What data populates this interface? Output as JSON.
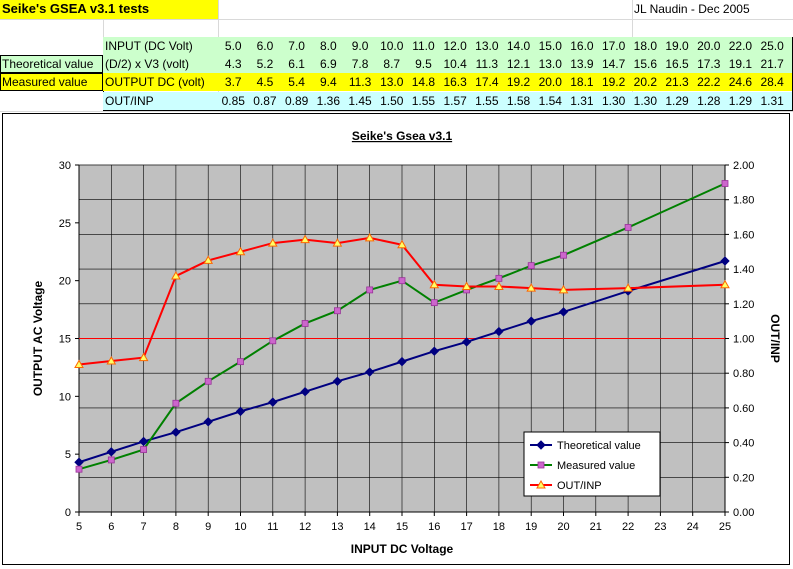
{
  "sheet": {
    "title": "Seike's GSEA v3.1 tests",
    "author": "JL Naudin - Dec 2005",
    "rows": [
      {
        "label": "",
        "head": "INPUT (DC Volt)",
        "values": [
          "5.0",
          "6.0",
          "7.0",
          "8.0",
          "9.0",
          "10.0",
          "11.0",
          "12.0",
          "13.0",
          "14.0",
          "15.0",
          "16.0",
          "17.0",
          "18.0",
          "19.0",
          "20.0",
          "22.0",
          "25.0"
        ],
        "bg": "#ccffcc",
        "labelbg": "#ffffff"
      },
      {
        "label": "Theoretical value",
        "head": "(D/2) x V3 (volt)",
        "values": [
          "4.3",
          "5.2",
          "6.1",
          "6.9",
          "7.8",
          "8.7",
          "9.5",
          "10.4",
          "11.3",
          "12.1",
          "13.0",
          "13.9",
          "14.7",
          "15.6",
          "16.5",
          "17.3",
          "19.1",
          "21.7"
        ],
        "bg": "#ccffcc",
        "labelbg": "#ccffcc"
      },
      {
        "label": "Measured value",
        "head": "OUTPUT DC (volt)",
        "values": [
          "3.7",
          "4.5",
          "5.4",
          "9.4",
          "11.3",
          "13.0",
          "14.8",
          "16.3",
          "17.4",
          "19.2",
          "20.0",
          "18.1",
          "19.2",
          "20.2",
          "21.3",
          "22.2",
          "24.6",
          "28.4"
        ],
        "bg": "#ffff00",
        "labelbg": "#ffff00"
      },
      {
        "label": "",
        "head": "OUT/INP",
        "values": [
          "0.85",
          "0.87",
          "0.89",
          "1.36",
          "1.45",
          "1.50",
          "1.55",
          "1.57",
          "1.55",
          "1.58",
          "1.54",
          "1.31",
          "1.30",
          "1.30",
          "1.29",
          "1.28",
          "1.29",
          "1.31"
        ],
        "bg": "#ccffff",
        "labelbg": "#ffffff"
      }
    ]
  },
  "chart_data": {
    "type": "line",
    "title": "Seike's Gsea v3.1",
    "xlabel": "INPUT DC Voltage",
    "ylabel": "OUTPUT AC Voltage",
    "y2label": "OUT/INP",
    "xlim": [
      5,
      25
    ],
    "ylim": [
      0,
      30
    ],
    "y2lim": [
      0,
      2
    ],
    "xticks": [
      "5",
      "6",
      "7",
      "8",
      "9",
      "10",
      "11",
      "12",
      "13",
      "14",
      "15",
      "16",
      "17",
      "18",
      "19",
      "20",
      "21",
      "22",
      "23",
      "24",
      "25"
    ],
    "yticks": [
      "0",
      "5",
      "10",
      "15",
      "20",
      "25",
      "30"
    ],
    "y2ticks": [
      "0.00",
      "0.20",
      "0.40",
      "0.60",
      "0.80",
      "1.00",
      "1.20",
      "1.40",
      "1.60",
      "1.80",
      "2.00"
    ],
    "grid": true,
    "x": [
      5,
      6,
      7,
      8,
      9,
      10,
      11,
      12,
      13,
      14,
      15,
      16,
      17,
      18,
      19,
      20,
      22,
      25
    ],
    "series": [
      {
        "name": "Theoretical value",
        "axis": "left",
        "color": "#000080",
        "marker": "diamond",
        "values": [
          4.3,
          5.2,
          6.1,
          6.9,
          7.8,
          8.7,
          9.5,
          10.4,
          11.3,
          12.1,
          13.0,
          13.9,
          14.7,
          15.6,
          16.5,
          17.3,
          19.1,
          21.7
        ]
      },
      {
        "name": "Measured value",
        "axis": "left",
        "color": "#008000",
        "marker": "square",
        "values": [
          3.7,
          4.5,
          5.4,
          9.4,
          11.3,
          13.0,
          14.8,
          16.3,
          17.4,
          19.2,
          20.0,
          18.1,
          19.2,
          20.2,
          21.3,
          22.2,
          24.6,
          28.4
        ]
      },
      {
        "name": "OUT/INP",
        "axis": "right",
        "color": "#ff0000",
        "marker": "triangle",
        "values": [
          0.85,
          0.87,
          0.89,
          1.36,
          1.45,
          1.5,
          1.55,
          1.57,
          1.55,
          1.58,
          1.54,
          1.31,
          1.3,
          1.3,
          1.29,
          1.28,
          1.29,
          1.31
        ]
      }
    ],
    "reference_line": {
      "axis": "right",
      "value": 1.0,
      "color": "#ff0000"
    },
    "legend_position": "bottom-right",
    "colors": {
      "plot_bg": "#c0c0c0",
      "gridline": "#000000"
    }
  }
}
